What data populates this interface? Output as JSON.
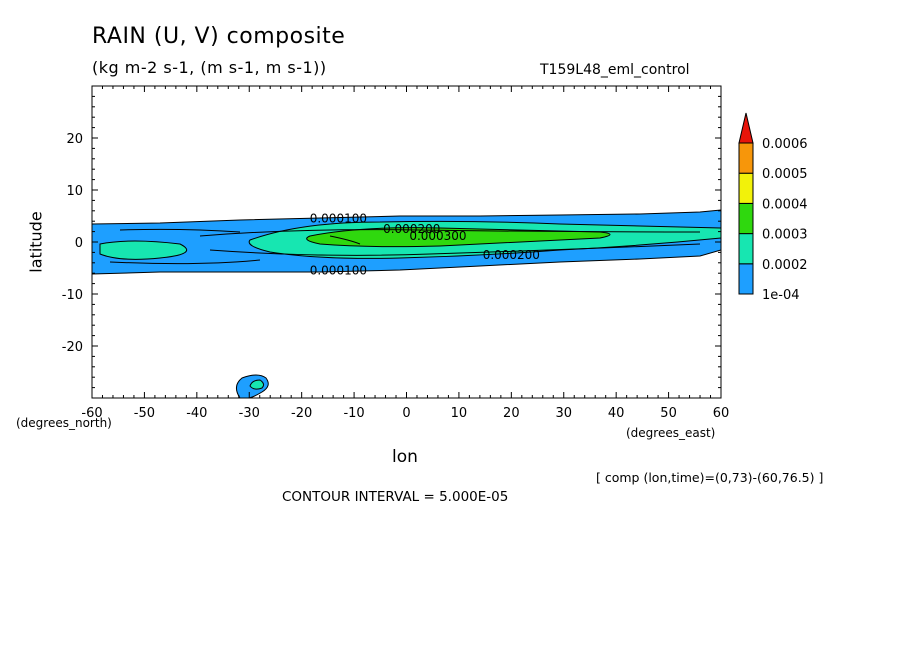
{
  "chart_data": {
    "type": "heatmap",
    "title": "RAIN (U, V) composite",
    "subtitle": "(kg m-2 s-1, (m s-1, m s-1))",
    "run_name": "T159L48_eml_control",
    "xlabel": "lon",
    "x_units": "(degrees_east)",
    "ylabel": "latitude",
    "y_units": "(degrees_north)",
    "xlim": [
      -60,
      60
    ],
    "ylim": [
      -30,
      30
    ],
    "x_ticks": [
      "-60",
      "-50",
      "-40",
      "-30",
      "-20",
      "-10",
      "0",
      "10",
      "20",
      "30",
      "40",
      "50",
      "60"
    ],
    "y_ticks": [
      "20",
      "10",
      "0",
      "-10",
      "-20"
    ],
    "colorbar": {
      "levels": [
        "1e-04",
        "0.0002",
        "0.0003",
        "0.0004",
        "0.0005",
        "0.0006"
      ],
      "colors": [
        "#1e9fff",
        "#17e6b1",
        "#2fd80e",
        "#f2f20a",
        "#f7960a",
        "#e8140a"
      ]
    },
    "contour_labels": [
      {
        "text": "0.000100",
        "lon": -13,
        "lat": 4.5
      },
      {
        "text": "0.000200",
        "lon": 1,
        "lat": 2.5
      },
      {
        "text": "0.000300",
        "lon": 6,
        "lat": 1.2
      },
      {
        "text": "0.000200",
        "lon": 20,
        "lat": -2.5
      },
      {
        "text": "0.000100",
        "lon": -13,
        "lat": -5.5
      }
    ],
    "contour_interval": "CONTOUR INTERVAL = 5.000E-05",
    "comp_info": "[ comp (lon,time)=(0,73)-(60,76.5) ]"
  }
}
